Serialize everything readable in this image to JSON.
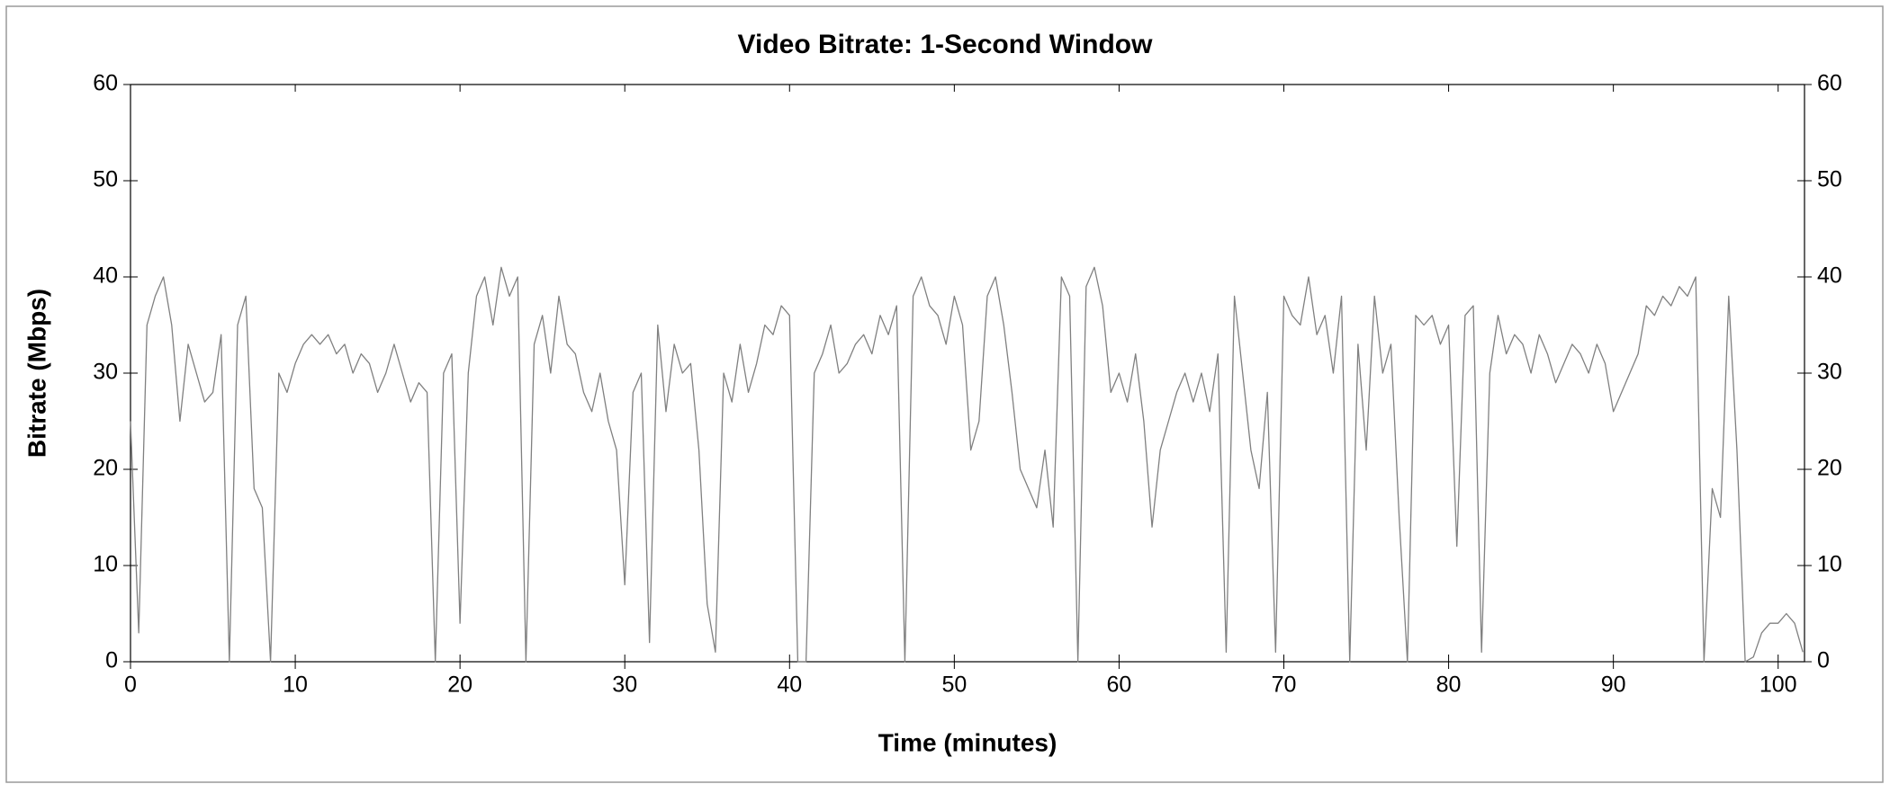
{
  "chart_data": {
    "type": "line",
    "title": "Video Bitrate: 1-Second Window",
    "x_label": "Time (minutes)",
    "y_label": "Bitrate (Mbps)",
    "color": "#808080",
    "x": [
      0,
      0.5,
      1,
      1.5,
      2,
      2.5,
      3,
      3.5,
      4,
      4.5,
      5,
      5.5,
      6,
      6.5,
      7,
      7.5,
      8,
      8.5,
      9,
      9.5,
      10,
      10.5,
      11,
      11.5,
      12,
      12.5,
      13,
      13.5,
      14,
      14.5,
      15,
      15.5,
      16,
      16.5,
      17,
      17.5,
      18,
      18.5,
      19,
      19.5,
      20,
      20.5,
      21,
      21.5,
      22,
      22.5,
      23,
      23.5,
      24,
      24.5,
      25,
      25.5,
      26,
      26.5,
      27,
      27.5,
      28,
      28.5,
      29,
      29.5,
      30,
      30.5,
      31,
      31.5,
      32,
      32.5,
      33,
      33.5,
      34,
      34.5,
      35,
      35.5,
      36,
      36.5,
      37,
      37.5,
      38,
      38.5,
      39,
      39.5,
      40,
      40.5,
      41,
      41.5,
      42,
      42.5,
      43,
      43.5,
      44,
      44.5,
      45,
      45.5,
      46,
      46.5,
      47,
      47.5,
      48,
      48.5,
      49,
      49.5,
      50,
      50.5,
      51,
      51.5,
      52,
      52.5,
      53,
      53.5,
      54,
      54.5,
      55,
      55.5,
      56,
      56.5,
      57,
      57.5,
      58,
      58.5,
      59,
      59.5,
      60,
      60.5,
      61,
      61.5,
      62,
      62.5,
      63,
      63.5,
      64,
      64.5,
      65,
      65.5,
      66,
      66.5,
      67,
      67.5,
      68,
      68.5,
      69,
      69.5,
      70,
      70.5,
      71,
      71.5,
      72,
      72.5,
      73,
      73.5,
      74,
      74.5,
      75,
      75.5,
      76,
      76.5,
      77,
      77.5,
      78,
      78.5,
      79,
      79.5,
      80,
      80.5,
      81,
      81.5,
      82,
      82.5,
      83,
      83.5,
      84,
      84.5,
      85,
      85.5,
      86,
      86.5,
      87,
      87.5,
      88,
      88.5,
      89,
      89.5,
      90,
      90.5,
      91,
      91.5,
      92,
      92.5,
      93,
      93.5,
      94,
      94.5,
      95,
      95.5,
      96,
      96.5,
      97,
      97.5,
      98,
      98.5,
      99,
      99.5,
      100,
      100.5,
      101,
      101.5
    ],
    "values": [
      25,
      3,
      35,
      38,
      40,
      35,
      25,
      33,
      30,
      27,
      28,
      34,
      0,
      35,
      38,
      18,
      16,
      0,
      30,
      28,
      31,
      33,
      34,
      33,
      34,
      32,
      33,
      30,
      32,
      31,
      28,
      30,
      33,
      30,
      27,
      29,
      28,
      0,
      30,
      32,
      4,
      30,
      38,
      40,
      35,
      41,
      38,
      40,
      0,
      33,
      36,
      30,
      38,
      33,
      32,
      28,
      26,
      30,
      25,
      22,
      8,
      28,
      30,
      2,
      35,
      26,
      33,
      30,
      31,
      22,
      6,
      1,
      30,
      27,
      33,
      28,
      31,
      35,
      34,
      37,
      36,
      0,
      0,
      30,
      32,
      35,
      30,
      31,
      33,
      34,
      32,
      36,
      34,
      37,
      0,
      38,
      40,
      37,
      36,
      33,
      38,
      35,
      22,
      25,
      38,
      40,
      35,
      28,
      20,
      18,
      16,
      22,
      14,
      40,
      38,
      0,
      39,
      41,
      37,
      28,
      30,
      27,
      32,
      25,
      14,
      22,
      25,
      28,
      30,
      27,
      30,
      26,
      32,
      1,
      38,
      30,
      22,
      18,
      28,
      1,
      38,
      36,
      35,
      40,
      34,
      36,
      30,
      38,
      0,
      33,
      22,
      38,
      30,
      33,
      15,
      0,
      36,
      35,
      36,
      33,
      35,
      12,
      36,
      37,
      1,
      30,
      36,
      32,
      34,
      33,
      30,
      34,
      32,
      29,
      31,
      33,
      32,
      30,
      33,
      31,
      26,
      28,
      30,
      32,
      37,
      36,
      38,
      37,
      39,
      38,
      40,
      0,
      18,
      15,
      38,
      22,
      0,
      0.5,
      3,
      4,
      4,
      5,
      4,
      1
    ],
    "xlim": [
      0,
      101.6
    ],
    "xticks": [
      0,
      10,
      20,
      30,
      40,
      50,
      60,
      70,
      80,
      90,
      100
    ],
    "ylim": [
      0,
      60
    ],
    "yticks": [
      0,
      10,
      20,
      30,
      40,
      50,
      60
    ],
    "y2lim": [
      0,
      60
    ],
    "y2ticks": [
      0,
      10,
      20,
      30,
      40,
      50,
      60
    ]
  }
}
